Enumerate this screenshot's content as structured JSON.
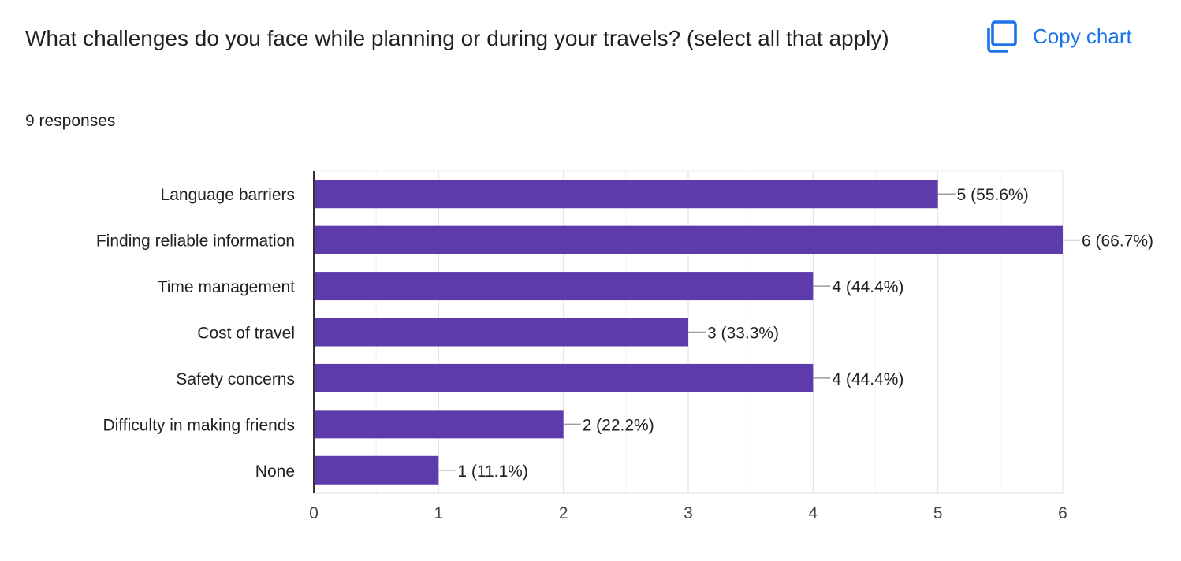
{
  "question": {
    "title": "What challenges do you face while planning or during your travels? (select all that apply)",
    "responses": "9 responses"
  },
  "toolbar": {
    "copy_label": "Copy chart",
    "copy_icon": "copy-icon"
  },
  "colors": {
    "bar": "#5e3bad",
    "accent": "#1a73e8",
    "text": "#202124"
  },
  "chart_data": {
    "type": "bar",
    "orientation": "horizontal",
    "categories": [
      "Language barriers",
      "Finding reliable information",
      "Time management",
      "Cost of travel",
      "Safety concerns",
      "Difficulty in making friends",
      "None"
    ],
    "values": [
      5,
      6,
      4,
      3,
      4,
      2,
      1
    ],
    "data_labels": [
      "5 (55.6%)",
      "6 (66.7%)",
      "4 (44.4%)",
      "3 (33.3%)",
      "4 (44.4%)",
      "2 (22.2%)",
      "1 (11.1%)"
    ],
    "xlim": [
      0,
      6
    ],
    "xticks": [
      "0",
      "1",
      "2",
      "3",
      "4",
      "5",
      "6"
    ],
    "grid": true,
    "legend": "none"
  }
}
